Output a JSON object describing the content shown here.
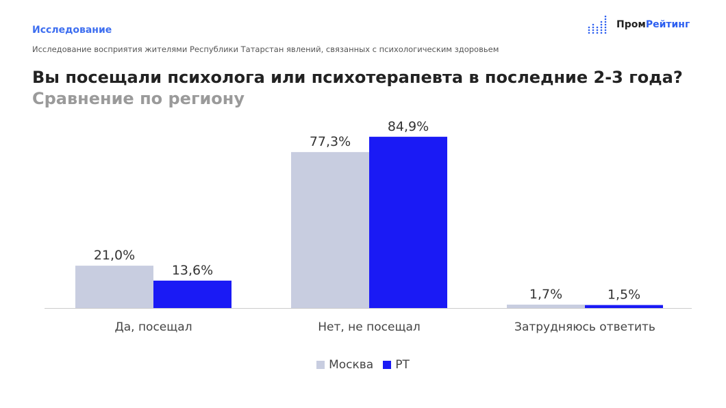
{
  "header": {
    "kicker": "Исследование",
    "subtitle": "Исследование восприятия жителями Республики Татарстан явлений, связанных с психологическим здоровьем",
    "title": "Вы посещали психолога или психотерапевта в последние 2-3 года?",
    "title_sub": "Сравнение по региону"
  },
  "logo": {
    "part1": "Пром",
    "part2": "Рейтинг",
    "icon": "dot-bars-icon"
  },
  "colors": {
    "accent": "#3d6ef0",
    "moscow": "#c8cde0",
    "rt": "#1a1af5"
  },
  "chart_data": {
    "type": "bar",
    "categories": [
      "Да, посещал",
      "Нет, не посещал",
      "Затрудняюсь ответить"
    ],
    "series": [
      {
        "name": "Москва",
        "values": [
          21.0,
          77.3,
          1.7
        ],
        "labels": [
          "21,0%",
          "77,3%",
          "1,7%"
        ],
        "color": "#c8cde0"
      },
      {
        "name": "РТ",
        "values": [
          13.6,
          84.9,
          1.5
        ],
        "labels": [
          "13,6%",
          "84,9%",
          "1,5%"
        ],
        "color": "#1a1af5"
      }
    ],
    "ylim": [
      0,
      95
    ],
    "grid": false,
    "legend": "bottom"
  }
}
